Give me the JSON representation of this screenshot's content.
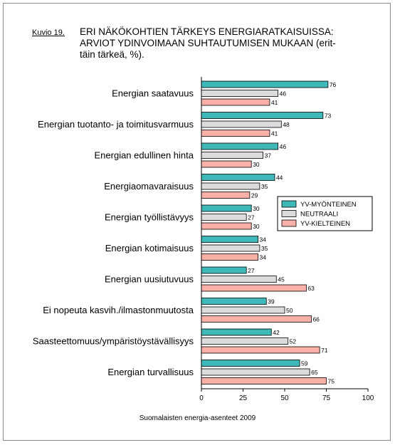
{
  "figure": {
    "label": "Kuvio 19.",
    "title": "ERI NÄKÖKOHTIEN TÄRKEYS ENERGIARATKAISUISSA:\nARVIOT YDINVOIMAAN SUHTAUTUMISEN MUKAAN (erit-\ntäin tärkeä, %).",
    "source": "Suomalaisten energia-asenteet 2009"
  },
  "chart_data": {
    "type": "bar",
    "orientation": "horizontal",
    "categories": [
      "Energian saatavuus",
      "Energian tuotanto- ja toimitusvarmuus",
      "Energian edullinen hinta",
      "Energiaomavaraisuus",
      "Energian työllistävyys",
      "Energian kotimaisuus",
      "Energian uusiutuvuus",
      "Ei nopeuta kasvih./ilmastonmuutosta",
      "Saasteettomuus/ympäristöystävällisyys",
      "Energian turvallisuus"
    ],
    "series": [
      {
        "name": "YV-MYÖNTEINEN",
        "color": "#3fb8b8",
        "values": [
          76,
          73,
          46,
          44,
          30,
          34,
          27,
          39,
          42,
          59
        ]
      },
      {
        "name": "NEUTRAALI",
        "color": "#dcdcdc",
        "values": [
          46,
          48,
          37,
          35,
          27,
          35,
          45,
          50,
          52,
          65
        ]
      },
      {
        "name": "YV-KIELTEINEN",
        "color": "#f8b0a8",
        "values": [
          41,
          41,
          30,
          29,
          30,
          34,
          63,
          66,
          71,
          75
        ]
      }
    ],
    "xlim": [
      0,
      100
    ],
    "xticks": [
      0,
      25,
      50,
      75,
      100
    ],
    "legend_position": "right"
  }
}
